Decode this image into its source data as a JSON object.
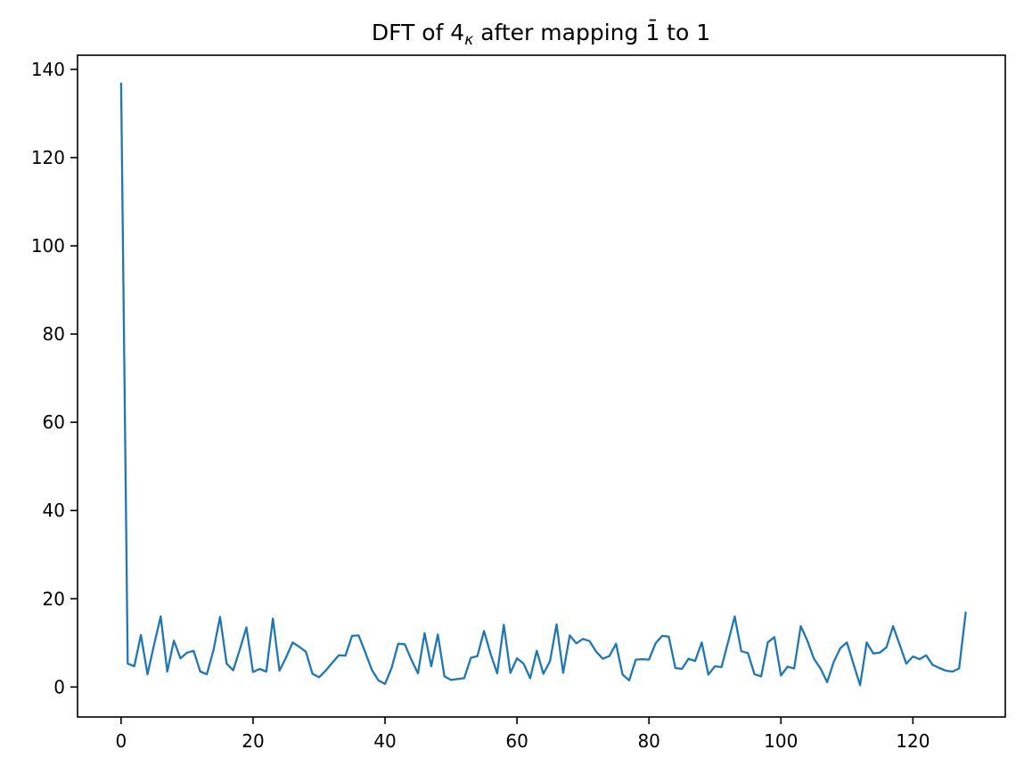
{
  "title": {
    "prefix": "DFT of 4",
    "subscript": "κ",
    "middle": " after mapping ",
    "barred_one": "1̄",
    "suffix": " to 1",
    "full": "DFT of 4κ after mapping 1̄ to 1"
  },
  "colors": {
    "line": "#1f77b4",
    "axis": "#000000",
    "background": "#ffffff",
    "text": "#000000"
  },
  "chart_data": {
    "type": "line",
    "title": "DFT of 4κ after mapping 1̄ to 1",
    "xlabel": "",
    "ylabel": "",
    "grid": false,
    "legend": null,
    "line_color": "#1f77b4",
    "x_ticks": [
      0,
      20,
      40,
      60,
      80,
      100,
      120
    ],
    "y_ticks": [
      0,
      20,
      40,
      60,
      80,
      100,
      120,
      140
    ],
    "xlim": [
      -6.6,
      134.0
    ],
    "ylim": [
      -6.8,
      143.2
    ],
    "x_start": 0,
    "x_step": 1,
    "values": [
      136.8,
      5.3,
      4.7,
      11.8,
      2.9,
      9.6,
      16.0,
      3.5,
      10.5,
      6.5,
      7.8,
      8.2,
      3.5,
      2.9,
      8.3,
      15.9,
      5.3,
      3.8,
      8.5,
      13.5,
      3.4,
      4.1,
      3.5,
      15.5,
      3.7,
      6.7,
      10.1,
      9.1,
      8.0,
      3.0,
      2.2,
      3.7,
      5.5,
      7.2,
      7.1,
      11.6,
      11.7,
      7.9,
      3.9,
      1.5,
      0.7,
      4.3,
      9.8,
      9.7,
      6.2,
      3.1,
      12.2,
      4.7,
      11.9,
      2.4,
      1.6,
      1.8,
      2.0,
      6.6,
      7.0,
      12.7,
      7.5,
      3.1,
      14.1,
      3.2,
      6.5,
      5.3,
      2.0,
      8.2,
      3.0,
      5.8,
      14.2,
      3.2,
      11.7,
      9.9,
      10.9,
      10.4,
      8.0,
      6.4,
      7.0,
      9.8,
      2.8,
      1.5,
      6.2,
      6.3,
      6.2,
      9.9,
      11.6,
      11.4,
      4.3,
      4.1,
      6.4,
      5.9,
      10.1,
      2.8,
      4.7,
      4.5,
      10.2,
      16.0,
      8.1,
      7.7,
      2.9,
      2.4,
      10.1,
      11.3,
      2.6,
      4.6,
      4.2,
      13.8,
      10.5,
      6.4,
      4.2,
      1.1,
      5.7,
      8.8,
      10.1,
      5.2,
      0.4,
      10.1,
      7.6,
      7.8,
      9.0,
      13.8,
      9.6,
      5.3,
      6.9,
      6.3,
      7.2,
      5.0,
      4.3,
      3.7,
      3.5,
      4.2,
      16.9
    ]
  }
}
